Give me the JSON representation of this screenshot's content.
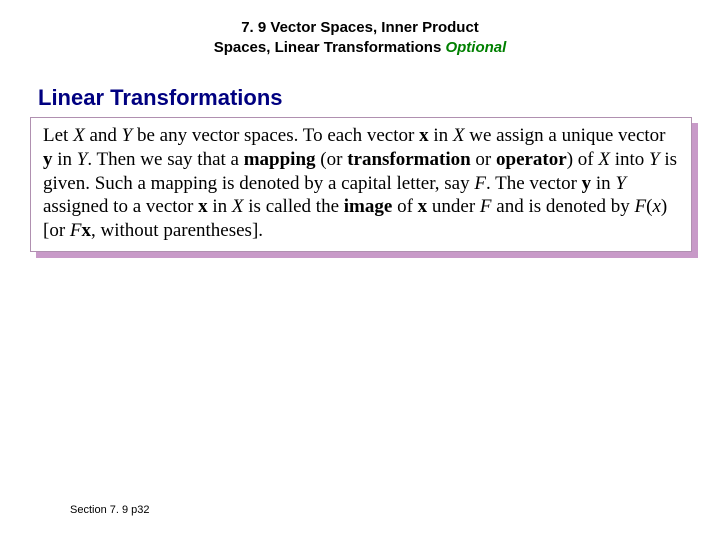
{
  "header": {
    "line1": "7. 9 Vector Spaces, Inner Product",
    "line2_prefix": "Spaces, Linear Transformations ",
    "line2_optional": "Optional",
    "font_size": 15,
    "color": "#000000",
    "optional_color": "#008000"
  },
  "section": {
    "title": "Linear Transformations",
    "color": "#000080",
    "font_size": 22
  },
  "box": {
    "background": "#ffffff",
    "border_color": "#b090b0",
    "shadow_color": "#c89ac8",
    "font_size": 19,
    "text_color": "#000000",
    "segments": [
      {
        "t": "Let ",
        "i": false,
        "b": false
      },
      {
        "t": "X",
        "i": true,
        "b": false
      },
      {
        "t": " and ",
        "i": false,
        "b": false
      },
      {
        "t": "Y",
        "i": true,
        "b": false
      },
      {
        "t": " be any vector spaces. To each vector ",
        "i": false,
        "b": false
      },
      {
        "t": "x",
        "i": false,
        "b": true
      },
      {
        "t": " in ",
        "i": false,
        "b": false
      },
      {
        "t": "X",
        "i": true,
        "b": false
      },
      {
        "t": " we assign a unique vector ",
        "i": false,
        "b": false
      },
      {
        "t": "y",
        "i": false,
        "b": true
      },
      {
        "t": " in ",
        "i": false,
        "b": false
      },
      {
        "t": "Y",
        "i": true,
        "b": false
      },
      {
        "t": ". Then we say that a ",
        "i": false,
        "b": false
      },
      {
        "t": "mapping",
        "i": false,
        "b": true
      },
      {
        "t": " (or ",
        "i": false,
        "b": false
      },
      {
        "t": "transformation",
        "i": false,
        "b": true
      },
      {
        "t": " or ",
        "i": false,
        "b": false
      },
      {
        "t": "operator",
        "i": false,
        "b": true
      },
      {
        "t": ") of ",
        "i": false,
        "b": false
      },
      {
        "t": "X",
        "i": true,
        "b": false
      },
      {
        "t": " into ",
        "i": false,
        "b": false
      },
      {
        "t": "Y",
        "i": true,
        "b": false
      },
      {
        "t": " is given. Such a mapping is denoted by a capital letter, say ",
        "i": false,
        "b": false
      },
      {
        "t": "F",
        "i": true,
        "b": false
      },
      {
        "t": ". The vector ",
        "i": false,
        "b": false
      },
      {
        "t": "y",
        "i": false,
        "b": true
      },
      {
        "t": " in ",
        "i": false,
        "b": false
      },
      {
        "t": "Y",
        "i": true,
        "b": false
      },
      {
        "t": " assigned to a vector ",
        "i": false,
        "b": false
      },
      {
        "t": "x",
        "i": false,
        "b": true
      },
      {
        "t": " in ",
        "i": false,
        "b": false
      },
      {
        "t": "X",
        "i": true,
        "b": false
      },
      {
        "t": " is called the ",
        "i": false,
        "b": false
      },
      {
        "t": "image",
        "i": false,
        "b": true
      },
      {
        "t": " of ",
        "i": false,
        "b": false
      },
      {
        "t": "x",
        "i": false,
        "b": true
      },
      {
        "t": " under ",
        "i": false,
        "b": false
      },
      {
        "t": "F",
        "i": true,
        "b": false
      },
      {
        "t": " and is denoted by ",
        "i": false,
        "b": false
      },
      {
        "t": "F",
        "i": true,
        "b": false
      },
      {
        "t": "(",
        "i": false,
        "b": false
      },
      {
        "t": "x",
        "i": true,
        "b": false
      },
      {
        "t": ") [or ",
        "i": false,
        "b": false
      },
      {
        "t": "F",
        "i": true,
        "b": false
      },
      {
        "t": "x",
        "i": false,
        "b": true
      },
      {
        "t": ", without parentheses].",
        "i": false,
        "b": false
      }
    ]
  },
  "footer": {
    "text": "Section 7. 9  p32",
    "font_size": 11
  }
}
